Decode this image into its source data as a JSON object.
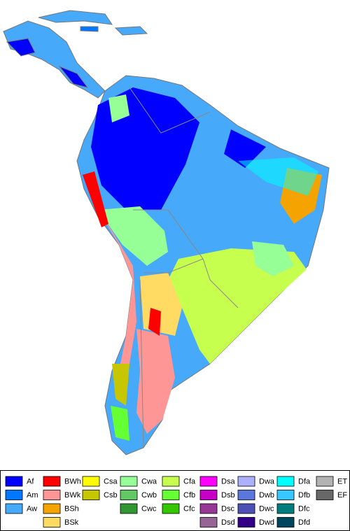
{
  "legend": {
    "columns": [
      [
        {
          "label": "Af",
          "color": "#0000fe"
        },
        {
          "label": "Am",
          "color": "#0077ff"
        },
        {
          "label": "Aw",
          "color": "#46a9fa"
        }
      ],
      [
        {
          "label": "BWh",
          "color": "#fe0000"
        },
        {
          "label": "BWk",
          "color": "#fe9695"
        },
        {
          "label": "BSh",
          "color": "#f5a301"
        },
        {
          "label": "BSk",
          "color": "#ffdb63"
        }
      ],
      [
        {
          "label": "Csa",
          "color": "#ffff00"
        },
        {
          "label": "Csb",
          "color": "#c6c700"
        }
      ],
      [
        {
          "label": "Cwa",
          "color": "#96ff96"
        },
        {
          "label": "Cwb",
          "color": "#63c764"
        },
        {
          "label": "Cwc",
          "color": "#329633"
        }
      ],
      [
        {
          "label": "Cfa",
          "color": "#c6ff4e"
        },
        {
          "label": "Cfb",
          "color": "#66ff33"
        },
        {
          "label": "Cfc",
          "color": "#33c701"
        }
      ],
      [
        {
          "label": "Dsa",
          "color": "#ff00fe"
        },
        {
          "label": "Dsb",
          "color": "#c600c7"
        },
        {
          "label": "Dsc",
          "color": "#963896"
        },
        {
          "label": "Dsd",
          "color": "#966495"
        }
      ],
      [
        {
          "label": "Dwa",
          "color": "#abb1ff"
        },
        {
          "label": "Dwb",
          "color": "#5a77db"
        },
        {
          "label": "Dwc",
          "color": "#4c51b5"
        },
        {
          "label": "Dwd",
          "color": "#320087"
        }
      ],
      [
        {
          "label": "Dfa",
          "color": "#00ffff"
        },
        {
          "label": "Dfb",
          "color": "#38c7ff"
        },
        {
          "label": "Dfc",
          "color": "#007e7d"
        },
        {
          "label": "Dfd",
          "color": "#00455e"
        }
      ],
      [
        {
          "label": "ET",
          "color": "#b2b2b2"
        },
        {
          "label": "EF",
          "color": "#686868"
        }
      ]
    ]
  }
}
